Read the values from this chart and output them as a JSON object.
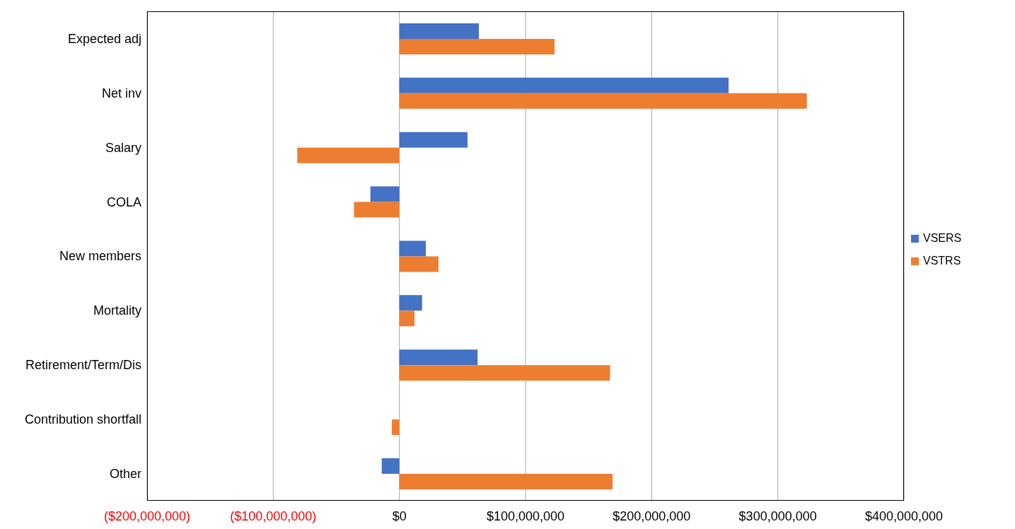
{
  "chart_data": {
    "type": "bar",
    "orientation": "horizontal",
    "categories": [
      "Expected adj",
      "Net inv",
      "Salary",
      "COLA",
      "New members",
      "Mortality",
      "Retirement/Term/Dis",
      "Contribution shortfall",
      "Other"
    ],
    "series": [
      {
        "name": "VSERS",
        "color": "#4472c4",
        "values": [
          63000000,
          261000000,
          54000000,
          -23000000,
          21000000,
          18000000,
          62000000,
          null,
          -14000000
        ]
      },
      {
        "name": "VSTRS",
        "color": "#ed7d31",
        "values": [
          123000000,
          323000000,
          -81000000,
          -36000000,
          31000000,
          12000000,
          167000000,
          -6000000,
          169000000
        ]
      }
    ],
    "xlim": [
      -200000000,
      400000000
    ],
    "xticks": [
      {
        "value": -200000000,
        "label": "($200,000,000)"
      },
      {
        "value": -100000000,
        "label": "($100,000,000)"
      },
      {
        "value": 0,
        "label": "$0"
      },
      {
        "value": 100000000,
        "label": "$100,000,000"
      },
      {
        "value": 200000000,
        "label": "$200,000,000"
      },
      {
        "value": 300000000,
        "label": "$300,000,000"
      },
      {
        "value": 400000000,
        "label": "$400,000,000"
      }
    ],
    "grid": "x",
    "legend": "right"
  }
}
